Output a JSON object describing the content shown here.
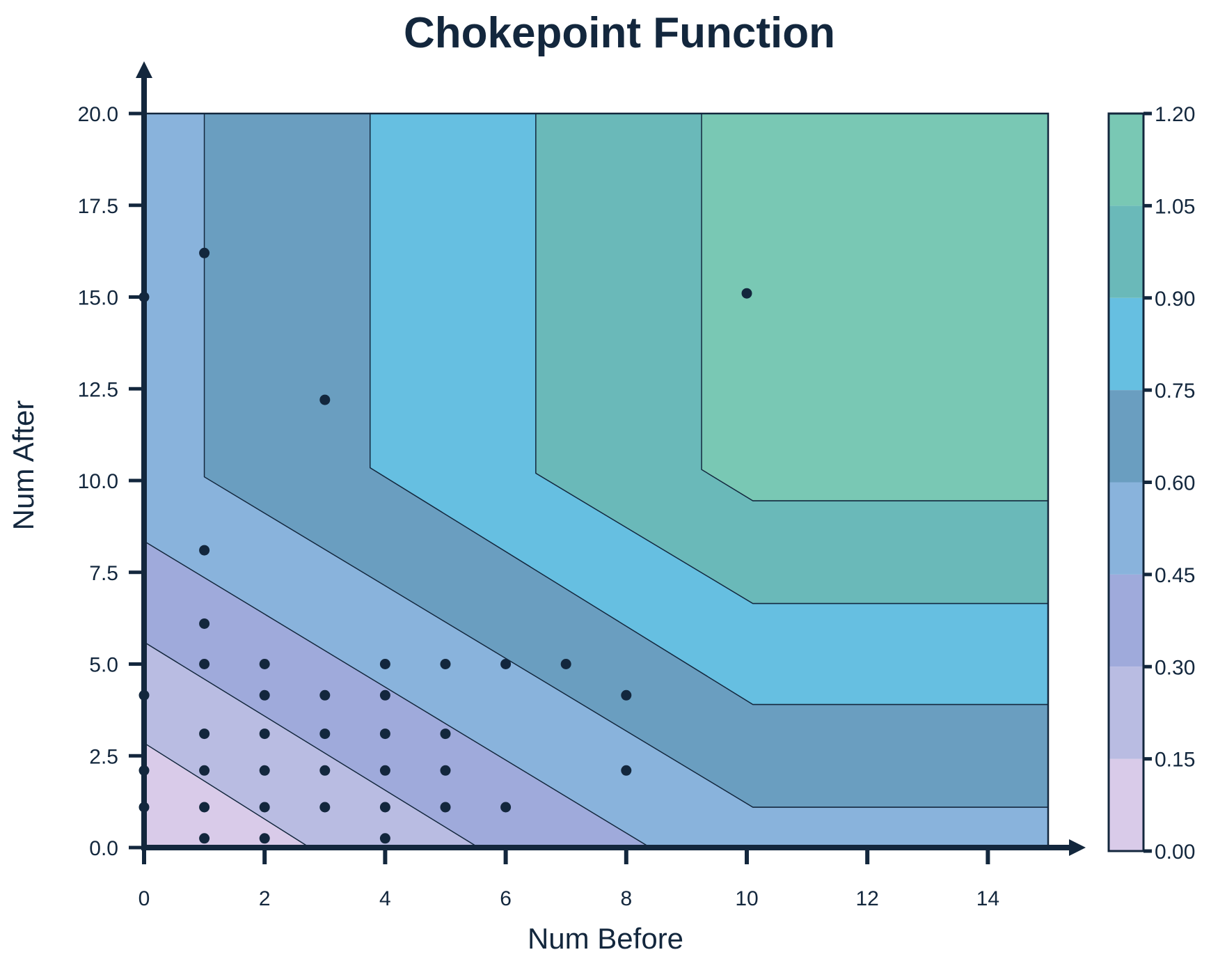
{
  "chart_data": {
    "type": "contour",
    "title": "Chokepoint Function",
    "xlabel": "Num Before",
    "ylabel": "Num After",
    "xlim": [
      0,
      15
    ],
    "ylim": [
      0,
      20
    ],
    "x_ticks": [
      "0",
      "2",
      "4",
      "6",
      "8",
      "10",
      "12",
      "14"
    ],
    "y_ticks": [
      "0.0",
      "2.5",
      "5.0",
      "7.5",
      "10.0",
      "12.5",
      "15.0",
      "17.5",
      "20.0"
    ],
    "colorbar": {
      "levels": [
        0.0,
        0.15,
        0.3,
        0.45,
        0.6,
        0.75,
        0.9,
        1.05,
        1.2
      ],
      "tick_labels": [
        "0.00",
        "0.15",
        "0.30",
        "0.45",
        "0.60",
        "0.75",
        "0.90",
        "1.05",
        "1.20"
      ],
      "colors": [
        "#d9cbe9",
        "#b9bce2",
        "#9faadb",
        "#89b3dc",
        "#6a9ec0",
        "#66bfe1",
        "#6ab9b9",
        "#79c8b4"
      ]
    },
    "contour_bands": [
      {
        "range": [
          0.0,
          0.15
        ],
        "color": "#d9cbe9",
        "region": [
          [
            0,
            0
          ],
          [
            2.75,
            0
          ],
          [
            0,
            2.85
          ]
        ]
      },
      {
        "range": [
          0.15,
          0.3
        ],
        "color": "#b9bce2",
        "region": [
          [
            2.75,
            0
          ],
          [
            5.55,
            0
          ],
          [
            0,
            5.6
          ],
          [
            0,
            2.85
          ]
        ]
      },
      {
        "range": [
          0.3,
          0.45
        ],
        "color": "#9faadb",
        "region": [
          [
            5.55,
            0
          ],
          [
            8.4,
            0
          ],
          [
            0,
            8.35
          ],
          [
            0,
            5.6
          ]
        ]
      },
      {
        "range": [
          0.45,
          0.6
        ],
        "color": "#89b3dc",
        "region": [
          [
            8.4,
            0
          ],
          [
            15,
            0
          ],
          [
            15,
            1.1
          ],
          [
            10.1,
            1.1
          ],
          [
            1.0,
            10.1
          ],
          [
            1.0,
            20
          ],
          [
            0,
            20
          ],
          [
            0,
            8.35
          ]
        ]
      },
      {
        "range": [
          0.6,
          0.75
        ],
        "color": "#6a9ec0",
        "region": [
          [
            1.0,
            10.1
          ],
          [
            10.1,
            1.1
          ],
          [
            15,
            1.1
          ],
          [
            15,
            3.9
          ],
          [
            10.1,
            3.9
          ],
          [
            3.75,
            10.35
          ],
          [
            3.75,
            20
          ],
          [
            1.0,
            20
          ]
        ]
      },
      {
        "range": [
          0.75,
          0.9
        ],
        "color": "#66bfe1",
        "region": [
          [
            3.75,
            10.35
          ],
          [
            10.1,
            3.9
          ],
          [
            15,
            3.9
          ],
          [
            15,
            6.65
          ],
          [
            10.1,
            6.65
          ],
          [
            6.5,
            10.2
          ],
          [
            6.5,
            20
          ],
          [
            3.75,
            20
          ]
        ]
      },
      {
        "range": [
          0.9,
          1.05
        ],
        "color": "#6ab9b9",
        "region": [
          [
            6.5,
            10.2
          ],
          [
            10.1,
            6.65
          ],
          [
            15,
            6.65
          ],
          [
            15,
            9.45
          ],
          [
            10.1,
            9.45
          ],
          [
            9.25,
            10.3
          ],
          [
            9.25,
            20
          ],
          [
            6.5,
            20
          ]
        ]
      },
      {
        "range": [
          1.05,
          1.2
        ],
        "color": "#79c8b4",
        "region": [
          [
            9.25,
            10.3
          ],
          [
            10.1,
            9.45
          ],
          [
            15,
            9.45
          ],
          [
            15,
            20
          ],
          [
            9.25,
            20
          ]
        ]
      }
    ],
    "scatter_points": [
      {
        "x": 0,
        "y": 15
      },
      {
        "x": 1,
        "y": 16.2
      },
      {
        "x": 3,
        "y": 12.2
      },
      {
        "x": 10,
        "y": 15.1
      },
      {
        "x": 1,
        "y": 8.1
      },
      {
        "x": 1,
        "y": 6.1
      },
      {
        "x": 1,
        "y": 5
      },
      {
        "x": 2,
        "y": 5
      },
      {
        "x": 4,
        "y": 5
      },
      {
        "x": 5,
        "y": 5
      },
      {
        "x": 6,
        "y": 5
      },
      {
        "x": 7,
        "y": 5
      },
      {
        "x": 0,
        "y": 4.15
      },
      {
        "x": 2,
        "y": 4.15
      },
      {
        "x": 3,
        "y": 4.15
      },
      {
        "x": 4,
        "y": 4.15
      },
      {
        "x": 8,
        "y": 4.15
      },
      {
        "x": 1,
        "y": 3.1
      },
      {
        "x": 2,
        "y": 3.1
      },
      {
        "x": 3,
        "y": 3.1
      },
      {
        "x": 4,
        "y": 3.1
      },
      {
        "x": 5,
        "y": 3.1
      },
      {
        "x": 0,
        "y": 2.1
      },
      {
        "x": 1,
        "y": 2.1
      },
      {
        "x": 2,
        "y": 2.1
      },
      {
        "x": 3,
        "y": 2.1
      },
      {
        "x": 4,
        "y": 2.1
      },
      {
        "x": 5,
        "y": 2.1
      },
      {
        "x": 8,
        "y": 2.1
      },
      {
        "x": 0,
        "y": 1.1
      },
      {
        "x": 1,
        "y": 1.1
      },
      {
        "x": 2,
        "y": 1.1
      },
      {
        "x": 3,
        "y": 1.1
      },
      {
        "x": 4,
        "y": 1.1
      },
      {
        "x": 5,
        "y": 1.1
      },
      {
        "x": 6,
        "y": 1.1
      },
      {
        "x": 1,
        "y": 0.25
      },
      {
        "x": 2,
        "y": 0.25
      },
      {
        "x": 4,
        "y": 0.25
      }
    ],
    "colors": {
      "axis": "#13273d",
      "point": "#13273d",
      "contour_line": "#13273d"
    },
    "grid": false
  }
}
